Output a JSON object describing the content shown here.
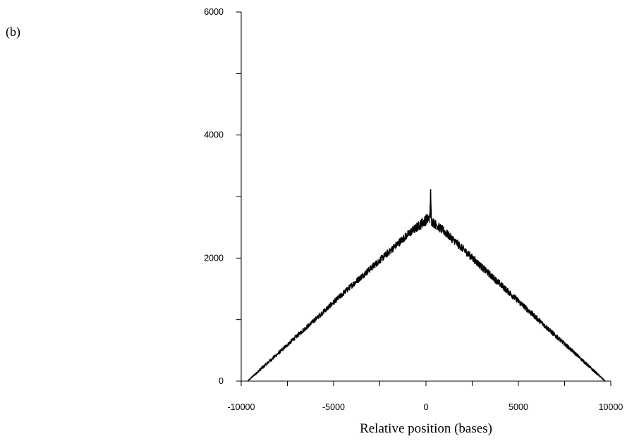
{
  "panel_label": "(b)",
  "chart_data": {
    "type": "line",
    "title": "",
    "xlabel": "Relative position (bases)",
    "ylabel": "",
    "xlim": [
      -10000,
      10000
    ],
    "ylim": [
      0,
      6000
    ],
    "x_ticks": [
      -10000,
      -5000,
      0,
      5000,
      10000
    ],
    "x_tick_labels": [
      "-10000",
      "-5000",
      "0",
      "5000",
      "10000"
    ],
    "x_minor_ticks": [
      -7500,
      -2500,
      2500,
      7500
    ],
    "y_ticks": [
      0,
      2000,
      4000,
      6000
    ],
    "y_tick_labels": [
      "0",
      "2000",
      "4000",
      "6000"
    ],
    "y_minor_ticks": [
      1000,
      3000,
      5000
    ],
    "grid": false,
    "legend": "none",
    "line_color": "#000000",
    "series": [
      {
        "x": [
          -9650,
          -9000,
          -8000,
          -7000,
          -6000,
          -5000,
          -4000,
          -3000,
          -2000,
          -1000,
          0,
          200,
          250,
          300,
          1000,
          2000,
          3000,
          4000,
          5000,
          6000,
          7000,
          8000,
          9000,
          9700
        ],
        "y": [
          0,
          180,
          450,
          730,
          1000,
          1280,
          1560,
          1830,
          2100,
          2380,
          2620,
          2650,
          3120,
          2600,
          2430,
          2150,
          1860,
          1580,
          1300,
          1020,
          740,
          470,
          190,
          0
        ],
        "band_halfwidth": [
          10,
          25,
          30,
          35,
          40,
          45,
          50,
          55,
          60,
          65,
          90,
          80,
          0,
          80,
          70,
          65,
          60,
          55,
          50,
          45,
          40,
          30,
          25,
          10
        ]
      }
    ]
  }
}
